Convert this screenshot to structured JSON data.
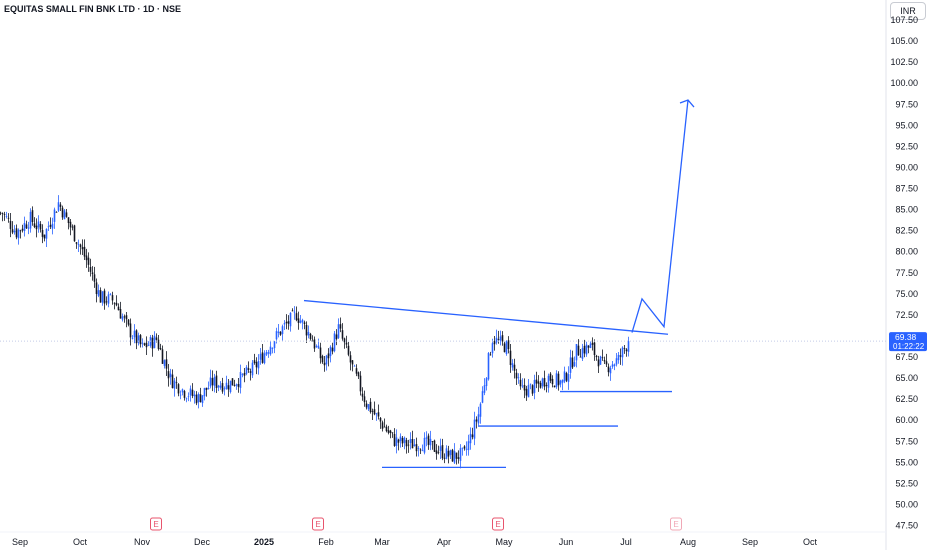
{
  "header": {
    "symbol": "EQUITAS SMALL FIN BNK LTD · 1D · NSE",
    "currency": "INR"
  },
  "price_label": {
    "price": "69.38",
    "countdown": "01:22:22"
  },
  "earnings_marker": "E",
  "colors": {
    "up": "#2962ff",
    "down": "#131722",
    "drawing": "#2962ff",
    "price_line": "#c3cbe8"
  },
  "chart_data": {
    "type": "candlestick",
    "title": "EQUITAS SMALL FIN BNK LTD · 1D · NSE",
    "ylim": [
      47.5,
      107.5
    ],
    "y_ticks": [
      "47.50",
      "50.00",
      "52.50",
      "55.00",
      "57.50",
      "60.00",
      "62.50",
      "65.00",
      "67.50",
      "70.00",
      "72.50",
      "75.00",
      "77.50",
      "80.00",
      "82.50",
      "85.00",
      "87.50",
      "90.00",
      "92.50",
      "95.00",
      "97.50",
      "100.00",
      "102.50",
      "105.00",
      "107.50"
    ],
    "x_ticks": [
      "Sep",
      "Oct",
      "Nov",
      "Dec",
      "2025",
      "Feb",
      "Mar",
      "Apr",
      "May",
      "Jun",
      "Jul",
      "Aug",
      "Sep",
      "Oct"
    ],
    "earnings_markers_at": [
      "2024-11-08",
      "2025-01-28",
      "2025-04-28",
      "2025-07-26"
    ],
    "last_price": 69.38,
    "closes": [
      {
        "date": "2024-08-23",
        "close": 84.6
      },
      {
        "date": "2024-08-30",
        "close": 82.3
      },
      {
        "date": "2024-09-06",
        "close": 83.9
      },
      {
        "date": "2024-09-13",
        "close": 82.0
      },
      {
        "date": "2024-09-20",
        "close": 85.8
      },
      {
        "date": "2024-09-27",
        "close": 82.5
      },
      {
        "date": "2024-10-04",
        "close": 79.0
      },
      {
        "date": "2024-10-11",
        "close": 74.5
      },
      {
        "date": "2024-10-18",
        "close": 74.2
      },
      {
        "date": "2024-10-25",
        "close": 70.8
      },
      {
        "date": "2024-11-01",
        "close": 68.6
      },
      {
        "date": "2024-11-08",
        "close": 69.6
      },
      {
        "date": "2024-11-15",
        "close": 64.9
      },
      {
        "date": "2024-11-22",
        "close": 63.4
      },
      {
        "date": "2024-11-29",
        "close": 62.6
      },
      {
        "date": "2024-12-06",
        "close": 64.5
      },
      {
        "date": "2024-12-13",
        "close": 64.2
      },
      {
        "date": "2024-12-20",
        "close": 64.9
      },
      {
        "date": "2024-12-27",
        "close": 66.2
      },
      {
        "date": "2025-01-03",
        "close": 68.7
      },
      {
        "date": "2025-01-10",
        "close": 70.9
      },
      {
        "date": "2025-01-17",
        "close": 72.6
      },
      {
        "date": "2025-01-24",
        "close": 70.0
      },
      {
        "date": "2025-01-31",
        "close": 66.5
      },
      {
        "date": "2025-02-07",
        "close": 70.9
      },
      {
        "date": "2025-02-14",
        "close": 66.2
      },
      {
        "date": "2025-02-21",
        "close": 62.0
      },
      {
        "date": "2025-02-28",
        "close": 59.8
      },
      {
        "date": "2025-03-07",
        "close": 57.6
      },
      {
        "date": "2025-03-14",
        "close": 57.1
      },
      {
        "date": "2025-03-21",
        "close": 57.3
      },
      {
        "date": "2025-03-28",
        "close": 56.6
      },
      {
        "date": "2025-04-04",
        "close": 55.7
      },
      {
        "date": "2025-04-11",
        "close": 55.9
      },
      {
        "date": "2025-04-18",
        "close": 60.7
      },
      {
        "date": "2025-04-25",
        "close": 69.7
      },
      {
        "date": "2025-05-02",
        "close": 68.7
      },
      {
        "date": "2025-05-09",
        "close": 63.5
      },
      {
        "date": "2025-05-16",
        "close": 63.9
      },
      {
        "date": "2025-05-23",
        "close": 65.1
      },
      {
        "date": "2025-05-30",
        "close": 64.4
      },
      {
        "date": "2025-06-06",
        "close": 68.2
      },
      {
        "date": "2025-06-13",
        "close": 68.7
      },
      {
        "date": "2025-06-20",
        "close": 66.2
      },
      {
        "date": "2025-06-27",
        "close": 67.2
      },
      {
        "date": "2025-07-02",
        "close": 69.38
      }
    ],
    "drawings": [
      {
        "type": "trendline",
        "from": {
          "date": "2025-01-21",
          "value": 74.2
        },
        "to": {
          "date": "2025-07-22",
          "value": 70.2
        }
      },
      {
        "type": "horizontal",
        "value": 54.4,
        "from": "2025-03-01",
        "to": "2025-05-02"
      },
      {
        "type": "horizontal",
        "value": 59.3,
        "from": "2025-04-18",
        "to": "2025-06-27"
      },
      {
        "type": "horizontal",
        "value": 63.4,
        "from": "2025-05-29",
        "to": "2025-07-24"
      },
      {
        "type": "projection_path",
        "points": [
          {
            "date": "2025-07-04",
            "value": 70.4
          },
          {
            "date": "2025-07-09",
            "value": 74.4
          },
          {
            "date": "2025-07-20",
            "value": 71.1
          },
          {
            "date": "2025-08-01",
            "value": 98.0
          }
        ]
      }
    ]
  }
}
